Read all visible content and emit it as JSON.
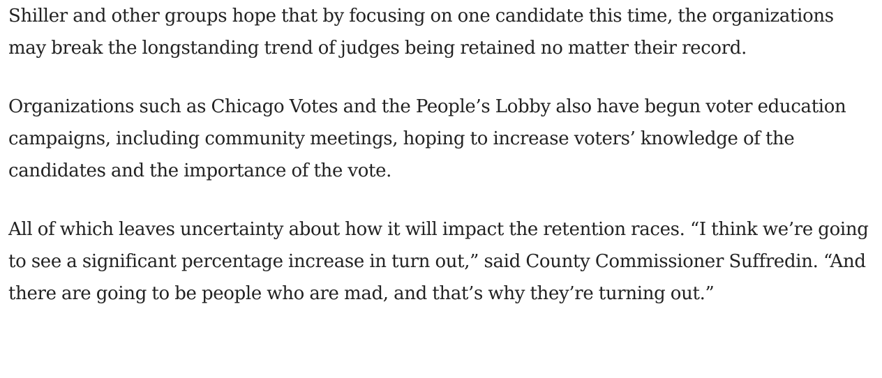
{
  "article": {
    "paragraphs": [
      "Shiller and other groups hope that by focusing on one candidate this time, the organizations may break the longstanding trend of judges being retained no matter their record.",
      "Organizations such as Chicago Votes and the People’s Lobby also have begun voter education campaigns, including community meetings, hoping to increase voters’ knowledge of the candidates and the importance of the vote.",
      "All of which leaves uncertainty about how it will impact the retention races. “I think we’re going to see a significant percentage increase in turn out,” said County Commissioner Suffredin. “And there are going to be people who are mad, and that’s why they’re turning out.”"
    ]
  }
}
